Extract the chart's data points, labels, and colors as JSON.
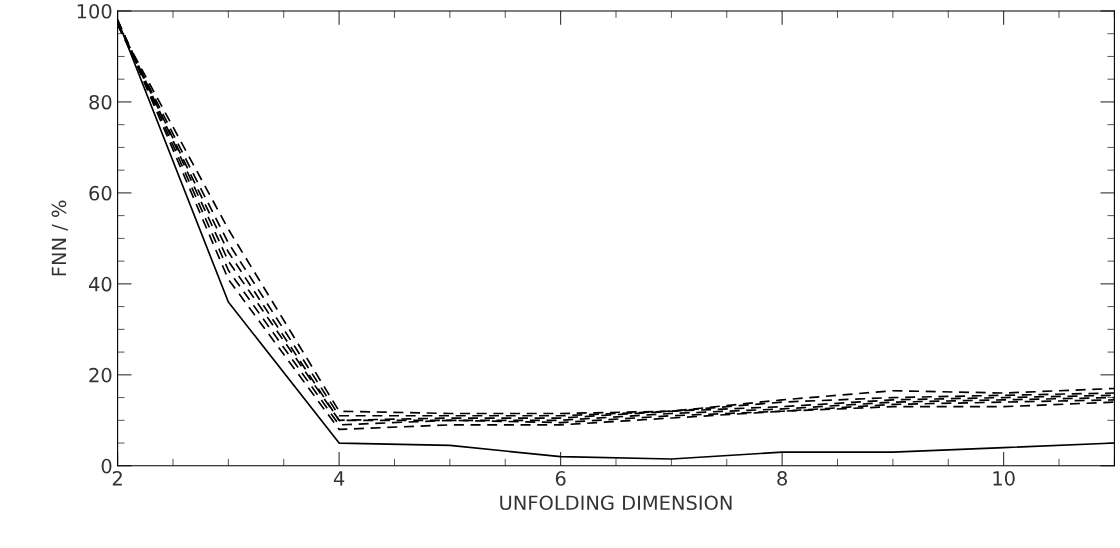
{
  "chart_data": {
    "type": "line",
    "xlabel": "UNFOLDING DIMENSION",
    "ylabel": "FNN / %",
    "x": [
      2,
      3,
      4,
      5,
      6,
      7,
      8,
      9,
      10,
      11
    ],
    "series": [
      {
        "color": "#000000",
        "line_style": "solid",
        "values": [
          98,
          36,
          5,
          4.5,
          2,
          1.5,
          3,
          3,
          4,
          5
        ]
      },
      {
        "color": "#000000",
        "line_style": "dashed",
        "values": [
          98,
          41,
          8,
          9,
          9,
          10.5,
          12,
          13,
          13,
          14
        ]
      },
      {
        "color": "#000000",
        "line_style": "dashed",
        "values": [
          98,
          43,
          9,
          10,
          9.5,
          11,
          12,
          13.5,
          14,
          14.5
        ]
      },
      {
        "color": "#000000",
        "line_style": "dashed",
        "values": [
          98,
          45,
          10,
          10,
          10,
          11.5,
          12.5,
          14,
          14.5,
          15
        ]
      },
      {
        "color": "#000000",
        "line_style": "dashed",
        "values": [
          97,
          47,
          10,
          10.5,
          10.5,
          12,
          13,
          14.5,
          15,
          15.5
        ]
      },
      {
        "color": "#000000",
        "line_style": "dashed",
        "values": [
          97,
          49,
          11,
          11,
          11,
          12,
          14,
          15,
          15.5,
          16
        ]
      },
      {
        "color": "#000000",
        "line_style": "dashed",
        "values": [
          97,
          52,
          12,
          11.5,
          11.5,
          12,
          14.5,
          16.5,
          16,
          17
        ]
      }
    ],
    "xlim": [
      2,
      11
    ],
    "ylim": [
      0,
      100
    ],
    "xticks": [
      2,
      4,
      6,
      8,
      10
    ],
    "yticks": [
      0,
      20,
      40,
      60,
      80,
      100
    ],
    "grid": false,
    "legend": false,
    "marker": "none"
  }
}
